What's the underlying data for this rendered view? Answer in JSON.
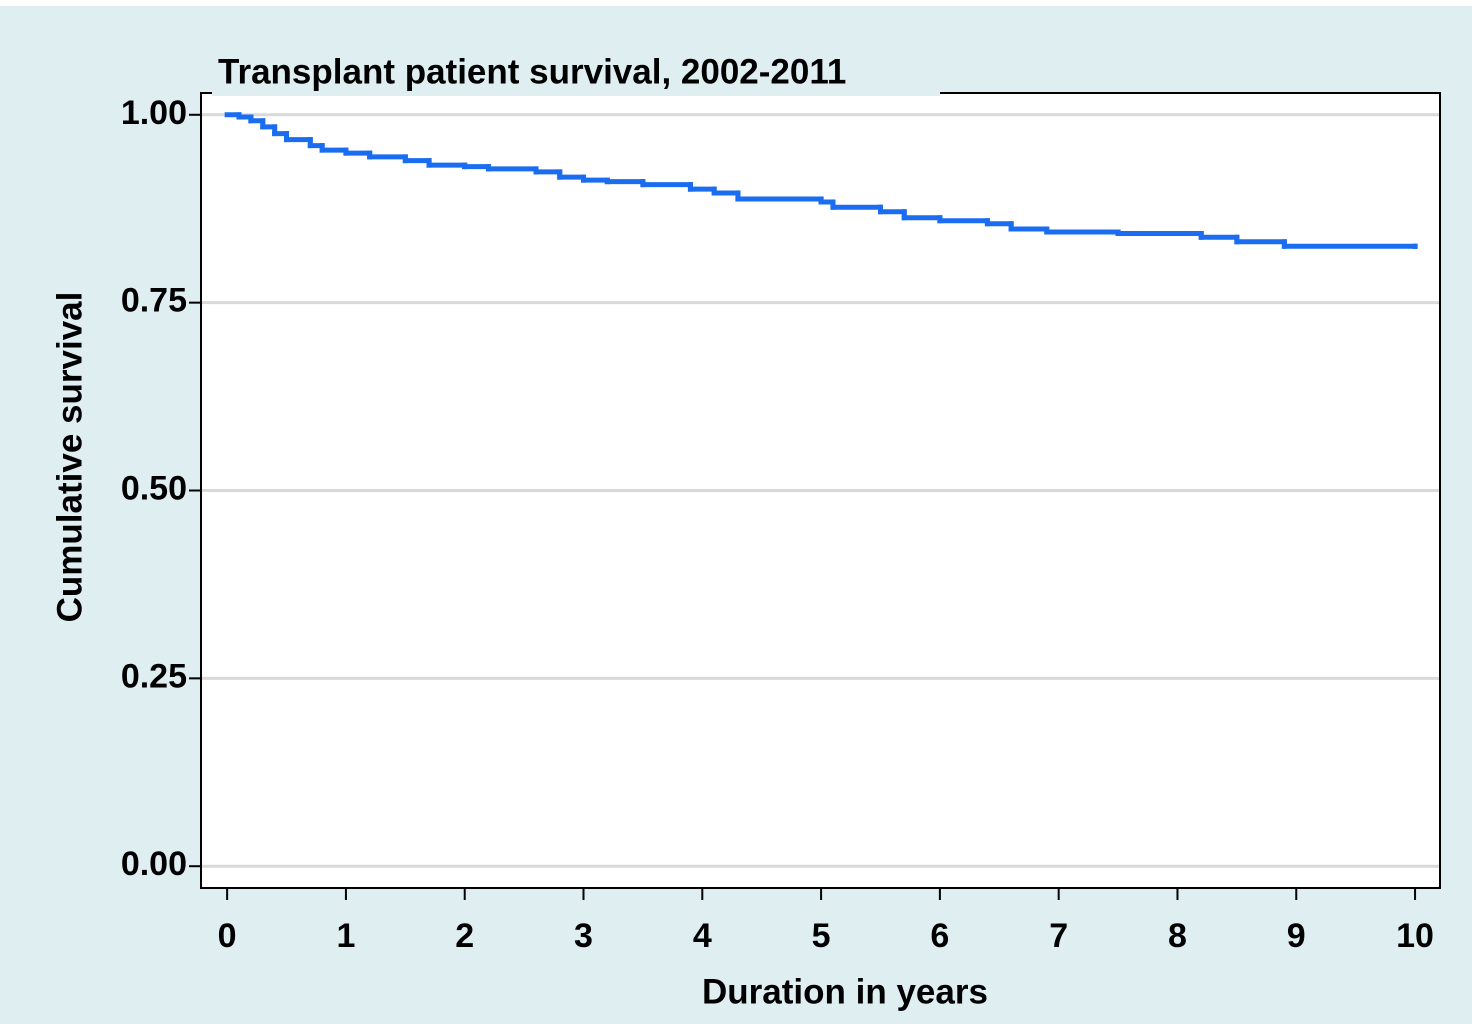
{
  "chart_data": {
    "type": "step",
    "title": "Transplant patient survival, 2002-2011",
    "x_label": "Duration in years",
    "y_label": "Cumulative survival",
    "x": [
      0,
      0.1,
      0.2,
      0.3,
      0.4,
      0.5,
      0.7,
      0.8,
      1.0,
      1.2,
      1.5,
      1.7,
      2.0,
      2.2,
      2.6,
      2.8,
      3.0,
      3.2,
      3.5,
      3.9,
      4.1,
      4.3,
      5.0,
      5.1,
      5.5,
      5.7,
      6.0,
      6.4,
      6.6,
      6.9,
      7.5,
      8.2,
      8.5,
      8.9,
      10.0
    ],
    "series": [
      {
        "color": "#1a6cf0",
        "values": [
          1.0,
          0.997,
          0.992,
          0.984,
          0.975,
          0.967,
          0.959,
          0.953,
          0.949,
          0.944,
          0.939,
          0.933,
          0.931,
          0.928,
          0.924,
          0.917,
          0.913,
          0.911,
          0.907,
          0.901,
          0.896,
          0.888,
          0.884,
          0.877,
          0.871,
          0.863,
          0.859,
          0.855,
          0.848,
          0.844,
          0.842,
          0.837,
          0.831,
          0.825,
          0.825
        ]
      }
    ],
    "xlim": [
      -0.22,
      10.21
    ],
    "ylim": [
      -0.029,
      1.029
    ],
    "xticks": [
      0,
      1,
      2,
      3,
      4,
      5,
      6,
      7,
      8,
      9,
      10
    ],
    "yticks": [
      {
        "value": 0,
        "label": "0.00"
      },
      0.25,
      {
        "value": 0.5,
        "label": "0.50"
      },
      0.75,
      {
        "value": 1,
        "label": "1.00"
      }
    ],
    "grid": true
  }
}
